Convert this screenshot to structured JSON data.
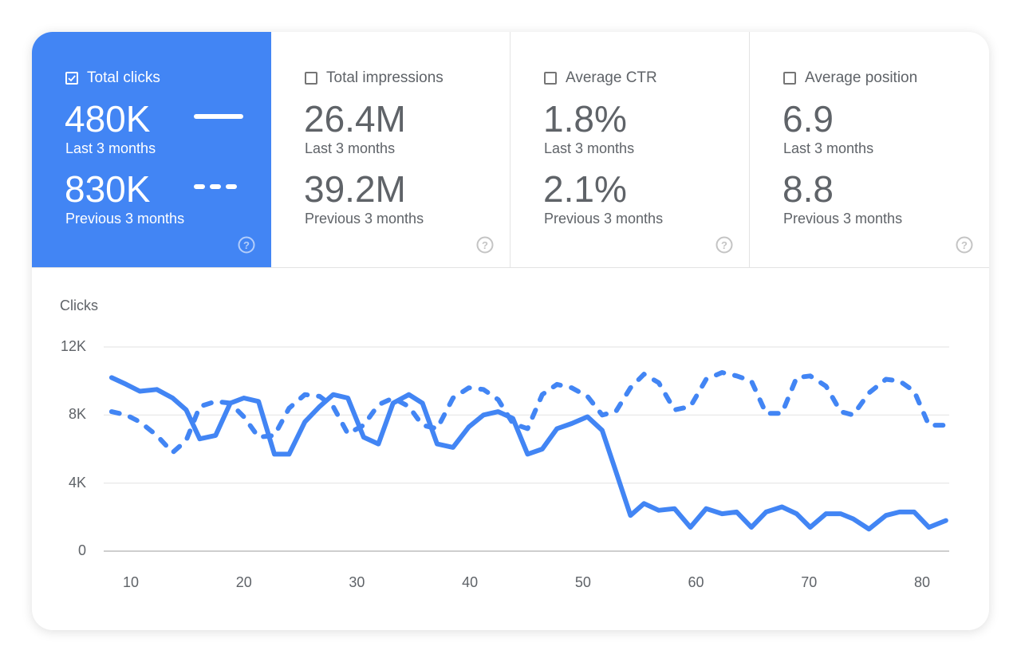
{
  "tiles": [
    {
      "title": "Total clicks",
      "checked": true,
      "current": "480K",
      "current_label": "Last 3 months",
      "previous": "830K",
      "previous_label": "Previous 3 months"
    },
    {
      "title": "Total impressions",
      "checked": false,
      "current": "26.4M",
      "current_label": "Last 3 months",
      "previous": "39.2M",
      "previous_label": "Previous 3 months"
    },
    {
      "title": "Average CTR",
      "checked": false,
      "current": "1.8%",
      "current_label": "Last 3 months",
      "previous": "2.1%",
      "previous_label": "Previous 3 months"
    },
    {
      "title": "Average position",
      "checked": false,
      "current": "6.9",
      "current_label": "Last 3 months",
      "previous": "8.8",
      "previous_label": "Previous 3 months"
    }
  ],
  "colors": {
    "accent": "#4285f4",
    "grid": "#e6e6e6",
    "text": "#5f6368"
  },
  "chart_data": {
    "type": "line",
    "ylabel": "Clicks",
    "xlabel": "",
    "ylim": [
      0,
      12000
    ],
    "yticks": [
      {
        "value": 0,
        "label": "0"
      },
      {
        "value": 4000,
        "label": "4K"
      },
      {
        "value": 8000,
        "label": "8K"
      },
      {
        "value": 12000,
        "label": "12K"
      }
    ],
    "xticks": [
      10,
      20,
      30,
      40,
      50,
      60,
      70,
      80
    ],
    "xlim": [
      8,
      83
    ],
    "grid": true,
    "x": [
      8.3,
      9.6,
      10.8,
      12.3,
      13.7,
      14.9,
      16.1,
      17.5,
      18.8,
      20.0,
      21.3,
      22.7,
      24.0,
      25.4,
      26.7,
      27.9,
      29.2,
      30.6,
      31.9,
      33.2,
      34.6,
      35.8,
      37.1,
      38.5,
      39.9,
      41.2,
      42.5,
      43.8,
      45.1,
      46.4,
      47.7,
      49.0,
      50.4,
      51.7,
      52.9,
      54.2,
      55.4,
      56.7,
      58.1,
      59.5,
      60.9,
      62.3,
      63.6,
      64.9,
      66.2,
      67.6,
      68.9,
      70.1,
      71.5,
      72.8,
      73.9,
      75.3,
      76.8,
      78.0,
      79.3,
      80.6,
      82.1
    ],
    "series": [
      {
        "style": "solid",
        "values": [
          10200,
          9800,
          9400,
          9500,
          9000,
          8300,
          6600,
          6800,
          8700,
          9000,
          8800,
          5700,
          5700,
          7600,
          8500,
          9200,
          9000,
          6700,
          6300,
          8700,
          9200,
          8700,
          6300,
          6100,
          7300,
          8000,
          8200,
          7800,
          5700,
          6000,
          7200,
          7500,
          7900,
          7100,
          4700,
          2100,
          2800,
          2400,
          2500,
          1400,
          2500,
          2200,
          2300,
          1400,
          2300,
          2600,
          2200,
          1400,
          2200,
          2200,
          1900,
          1300,
          2100,
          2300,
          2300,
          1400,
          1800
        ]
      },
      {
        "style": "dashed",
        "values": [
          8200,
          8000,
          7600,
          6800,
          5800,
          6500,
          8500,
          8800,
          8700,
          7900,
          6700,
          6800,
          8400,
          9200,
          9100,
          8500,
          6900,
          7400,
          8600,
          9000,
          8500,
          7400,
          7200,
          9000,
          9600,
          9500,
          8900,
          7500,
          7200,
          9200,
          9800,
          9600,
          9100,
          8000,
          8200,
          9600,
          10400,
          9900,
          8300,
          8500,
          10100,
          10500,
          10300,
          10000,
          8100,
          8100,
          10200,
          10300,
          9700,
          8200,
          8000,
          9300,
          10100,
          10000,
          9400,
          7400,
          7400
        ]
      }
    ]
  }
}
